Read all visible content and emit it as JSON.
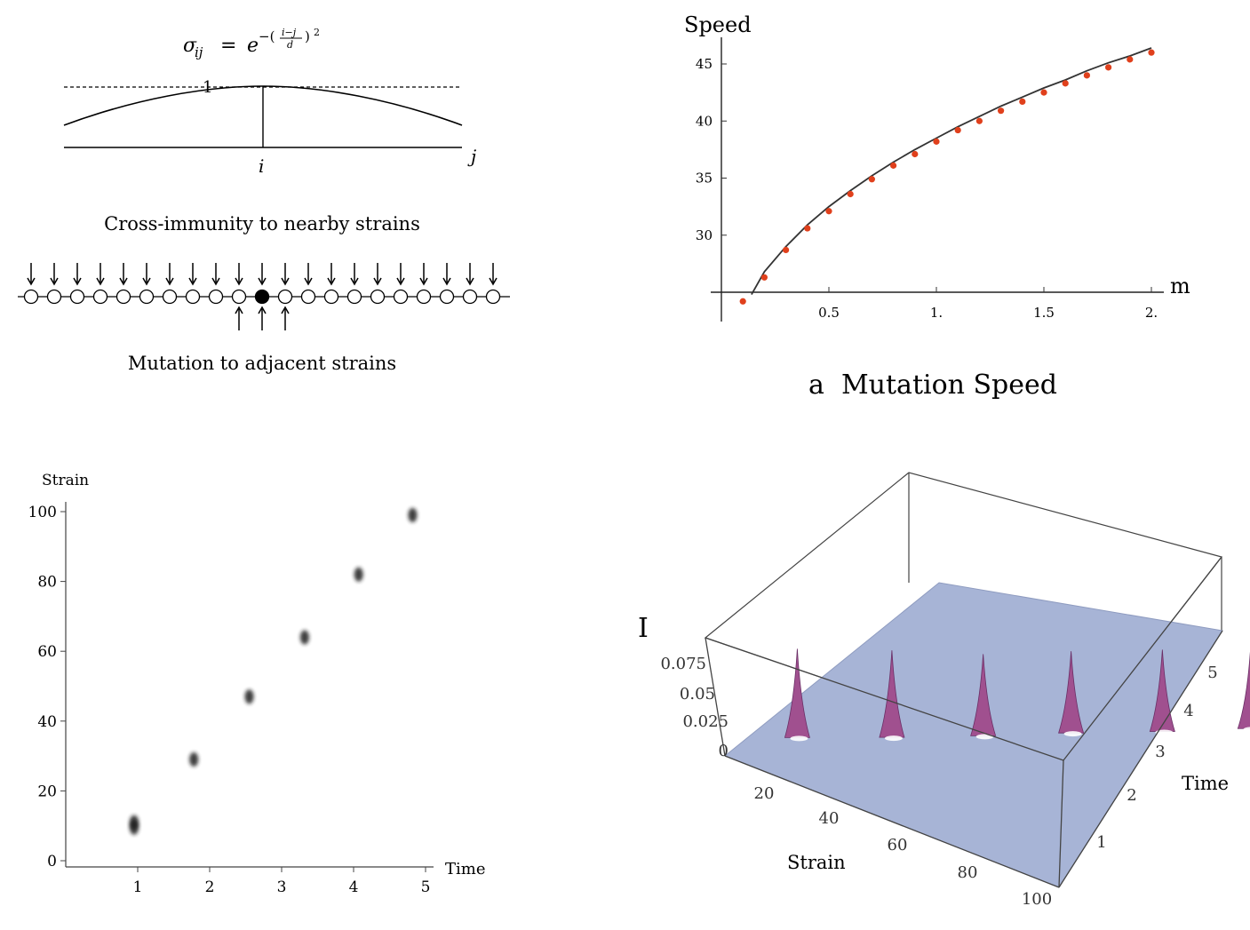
{
  "schematic": {
    "formula": "σ_ij = e^-((i−j)/d)^2",
    "peak_label": "1",
    "i_label": "i",
    "j_label": "j",
    "caption_top": "Cross-immunity to nearby strains",
    "caption_bottom": "Mutation to adjacent strains",
    "strain_count": 21,
    "highlighted_index": 10
  },
  "chart_data": [
    {
      "type": "scatter",
      "caption": "a  Mutation Speed",
      "ylabel": "Speed",
      "xlabel": "m",
      "xlim": [
        0,
        2.05
      ],
      "ylim": [
        26,
        47
      ],
      "xticks": [
        0.5,
        1.0,
        1.5,
        2.0
      ],
      "xtick_labels": [
        "0.5",
        "1.",
        "1.5",
        "2."
      ],
      "yticks": [
        30,
        35,
        40,
        45
      ],
      "ytick_labels": [
        "30",
        "35",
        "40",
        "45"
      ],
      "point_color": "#e0401c",
      "points": {
        "x": [
          0.1,
          0.2,
          0.3,
          0.4,
          0.5,
          0.6,
          0.7,
          0.8,
          0.9,
          1.0,
          1.1,
          1.2,
          1.3,
          1.4,
          1.5,
          1.6,
          1.7,
          1.8,
          1.9,
          2.0
        ],
        "y": [
          24.2,
          26.3,
          28.7,
          30.6,
          32.1,
          33.6,
          34.9,
          36.1,
          37.1,
          38.2,
          39.2,
          40.0,
          40.9,
          41.7,
          42.5,
          43.3,
          44.0,
          44.7,
          45.4,
          46.0
        ]
      },
      "curve": {
        "x": [
          0.14,
          0.2,
          0.3,
          0.4,
          0.5,
          0.6,
          0.7,
          0.8,
          0.9,
          1.0,
          1.1,
          1.2,
          1.3,
          1.4,
          1.5,
          1.6,
          1.7,
          1.8,
          1.9,
          2.0
        ],
        "y": [
          24.8,
          26.8,
          29.0,
          30.9,
          32.5,
          33.9,
          35.2,
          36.4,
          37.5,
          38.5,
          39.5,
          40.4,
          41.3,
          42.1,
          42.9,
          43.6,
          44.4,
          45.1,
          45.7,
          46.4
        ]
      }
    },
    {
      "type": "scatter",
      "xlabel": "Time",
      "ylabel": "Strain",
      "xlim": [
        0,
        5.2
      ],
      "ylim": [
        0,
        102
      ],
      "xticks": [
        1,
        2,
        3,
        4,
        5
      ],
      "yticks": [
        0,
        20,
        40,
        60,
        80,
        100
      ],
      "blobs": {
        "time": [
          0.95,
          0.95,
          1.78,
          2.55,
          3.32,
          4.07,
          4.82
        ],
        "strain": [
          11,
          9.5,
          29,
          47,
          64,
          82,
          99
        ]
      }
    },
    {
      "type": "surface",
      "zlabel": "I",
      "xlabel": "Strain",
      "ylabel": "Time",
      "ztick_labels": [
        "0",
        "0.025",
        "0.05",
        "0.075"
      ],
      "xtick_labels": [
        "20",
        "40",
        "60",
        "80",
        "100"
      ],
      "ytick_labels": [
        "1",
        "2",
        "3",
        "4",
        "5"
      ],
      "surface_color": "#a7b4d6",
      "peak_color": "#a0508f"
    }
  ]
}
